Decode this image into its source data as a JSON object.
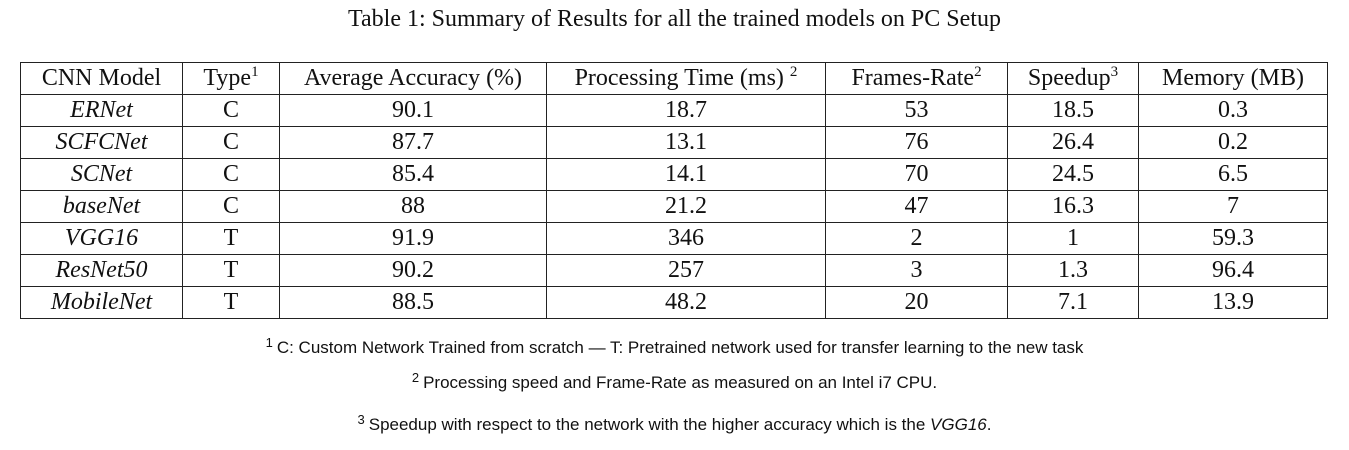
{
  "caption": "Table 1: Summary of Results for all the trained models on PC Setup",
  "headers": [
    {
      "text": "CNN Model",
      "sup": ""
    },
    {
      "text": "Type",
      "sup": "1"
    },
    {
      "text": "Average Accuracy (%)",
      "sup": ""
    },
    {
      "text": "Processing Time (ms) ",
      "sup": "2"
    },
    {
      "text": "Frames-Rate",
      "sup": "2"
    },
    {
      "text": "Speedup",
      "sup": "3"
    },
    {
      "text": "Memory (MB)",
      "sup": ""
    }
  ],
  "rows": [
    [
      "ERNet",
      "C",
      "90.1",
      "18.7",
      "53",
      "18.5",
      "0.3"
    ],
    [
      "SCFCNet",
      "C",
      "87.7",
      "13.1",
      "76",
      "26.4",
      "0.2"
    ],
    [
      "SCNet",
      "C",
      "85.4",
      "14.1",
      "70",
      "24.5",
      "6.5"
    ],
    [
      "baseNet",
      "C",
      "88",
      "21.2",
      "47",
      "16.3",
      "7"
    ],
    [
      "VGG16",
      "T",
      "91.9",
      "346",
      "2",
      "1",
      "59.3"
    ],
    [
      "ResNet50",
      "T",
      "90.2",
      "257",
      "3",
      "1.3",
      "96.4"
    ],
    [
      "MobileNet",
      "T",
      "88.5",
      "48.2",
      "20",
      "7.1",
      "13.9"
    ]
  ],
  "footnotes": [
    {
      "num": "1",
      "text": "C: Custom Network Trained from scratch — T: Pretrained network used for transfer learning to the new task",
      "em": "",
      "tail": ""
    },
    {
      "num": "2",
      "text": "Processing speed and Frame-Rate as measured on an Intel i7 CPU.",
      "em": "",
      "tail": ""
    },
    {
      "num": "3",
      "text": "Speedup with respect to the network with the higher accuracy which is the ",
      "em": "VGG16",
      "tail": "."
    }
  ]
}
